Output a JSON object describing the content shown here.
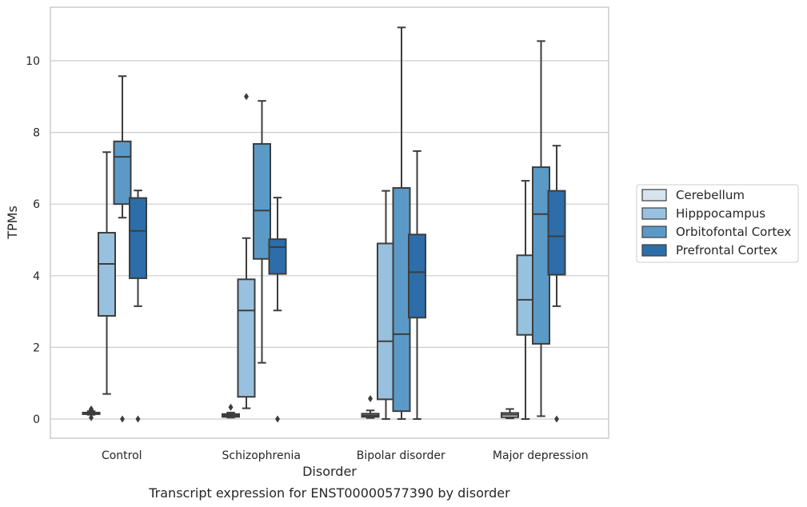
{
  "chart_data": {
    "type": "box",
    "title": "",
    "caption": "Transcript expression for ENST00000577390 by disorder",
    "xlabel": "Disorder",
    "ylabel": "TPMs",
    "ylim": [
      -0.5,
      11.5
    ],
    "yticks": [
      0,
      2,
      4,
      6,
      8,
      10
    ],
    "grid": "horizontal",
    "legend_position": "right",
    "categories": [
      "Control",
      "Schizophrenia",
      "Bipolar disorder",
      "Major depression"
    ],
    "series": [
      {
        "name": "Cerebellum",
        "color": "#d6e4f0",
        "boxes": [
          {
            "whislo": 0.12,
            "q1": 0.14,
            "med": 0.16,
            "q3": 0.18,
            "whishi": 0.22,
            "fliers": [
              0.04,
              0.25,
              0.28
            ]
          },
          {
            "whislo": 0.04,
            "q1": 0.06,
            "med": 0.1,
            "q3": 0.14,
            "whishi": 0.18,
            "fliers": [
              0.33
            ]
          },
          {
            "whislo": 0.03,
            "q1": 0.06,
            "med": 0.1,
            "q3": 0.15,
            "whishi": 0.24,
            "fliers": [
              0.57
            ]
          },
          {
            "whislo": 0.02,
            "q1": 0.05,
            "med": 0.12,
            "q3": 0.17,
            "whishi": 0.28,
            "fliers": []
          }
        ]
      },
      {
        "name": "Hipppocampus",
        "color": "#98c1df",
        "boxes": [
          {
            "whislo": 0.7,
            "q1": 2.88,
            "med": 4.33,
            "q3": 5.2,
            "whishi": 7.45,
            "fliers": []
          },
          {
            "whislo": 0.3,
            "q1": 0.62,
            "med": 3.03,
            "q3": 3.9,
            "whishi": 5.05,
            "fliers": [
              9.0
            ]
          },
          {
            "whislo": 0.0,
            "q1": 0.55,
            "med": 2.17,
            "q3": 4.9,
            "whishi": 6.37,
            "fliers": []
          },
          {
            "whislo": 0.0,
            "q1": 2.35,
            "med": 3.33,
            "q3": 4.57,
            "whishi": 6.65,
            "fliers": []
          }
        ]
      },
      {
        "name": "Orbitofontal Cortex",
        "color": "#5b9ac6",
        "boxes": [
          {
            "whislo": 5.62,
            "q1": 6.0,
            "med": 7.32,
            "q3": 7.75,
            "whishi": 9.57,
            "fliers": [
              0.0
            ]
          },
          {
            "whislo": 1.57,
            "q1": 4.47,
            "med": 5.82,
            "q3": 7.68,
            "whishi": 8.88,
            "fliers": []
          },
          {
            "whislo": 0.0,
            "q1": 0.22,
            "med": 2.37,
            "q3": 6.45,
            "whishi": 10.93,
            "fliers": []
          },
          {
            "whislo": 0.08,
            "q1": 2.1,
            "med": 5.72,
            "q3": 7.03,
            "whishi": 10.55,
            "fliers": []
          }
        ]
      },
      {
        "name": "Prefrontal Cortex",
        "color": "#2d6da9",
        "boxes": [
          {
            "whislo": 3.15,
            "q1": 3.93,
            "med": 5.25,
            "q3": 6.17,
            "whishi": 6.38,
            "fliers": [
              0.0
            ]
          },
          {
            "whislo": 3.03,
            "q1": 4.05,
            "med": 4.8,
            "q3": 5.02,
            "whishi": 6.18,
            "fliers": [
              0.0
            ]
          },
          {
            "whislo": 0.0,
            "q1": 2.83,
            "med": 4.1,
            "q3": 5.15,
            "whishi": 7.48,
            "fliers": []
          },
          {
            "whislo": 3.15,
            "q1": 4.03,
            "med": 5.1,
            "q3": 6.37,
            "whishi": 7.63,
            "fliers": [
              0.0
            ]
          }
        ]
      }
    ]
  }
}
